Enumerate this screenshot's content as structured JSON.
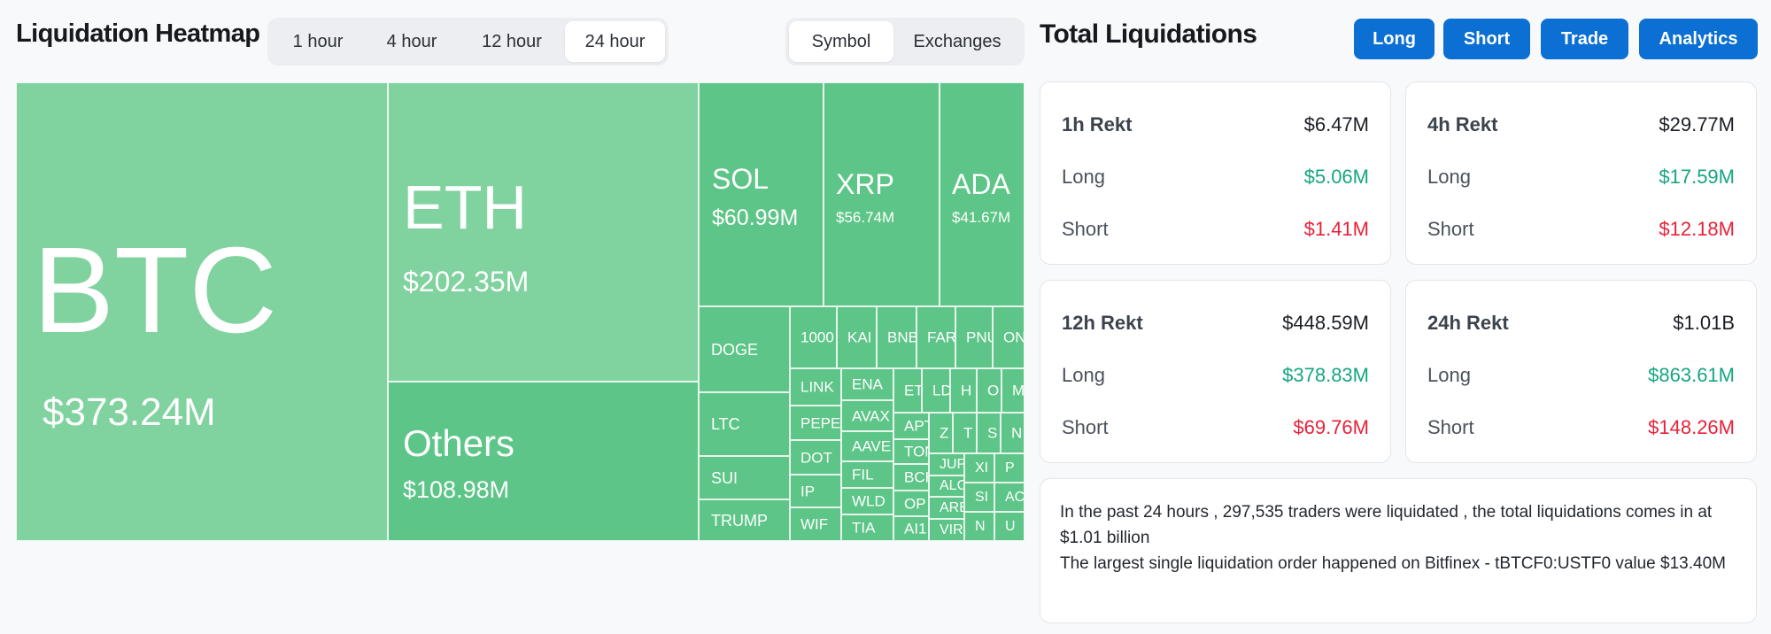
{
  "heatmap": {
    "title": "Liquidation Heatmap",
    "time_tabs": [
      "1 hour",
      "4 hour",
      "12 hour",
      "24 hour"
    ],
    "active_time_tab": "24 hour",
    "view_tabs": [
      "Symbol",
      "Exchanges"
    ],
    "active_view_tab": "Symbol",
    "tiles": {
      "btc": {
        "symbol": "BTC",
        "value": "$373.24M"
      },
      "eth": {
        "symbol": "ETH",
        "value": "$202.35M"
      },
      "others": {
        "symbol": "Others",
        "value": "$108.98M"
      },
      "sol": {
        "symbol": "SOL",
        "value": "$60.99M"
      },
      "xrp": {
        "symbol": "XRP",
        "value": "$56.74M"
      },
      "ada": {
        "symbol": "ADA",
        "value": "$41.67M"
      },
      "doge": {
        "symbol": "DOGE"
      },
      "ltc": {
        "symbol": "LTC"
      },
      "sui": {
        "symbol": "SUI"
      },
      "trump": {
        "symbol": "TRUMP"
      },
      "t1000": {
        "symbol": "1000"
      },
      "kai": {
        "symbol": "KAI"
      },
      "bnb": {
        "symbol": "BNB"
      },
      "far": {
        "symbol": "FAR"
      },
      "pnu": {
        "symbol": "PNU"
      },
      "on": {
        "symbol": "ON"
      },
      "link": {
        "symbol": "LINK"
      },
      "pepe": {
        "symbol": "PEPE"
      },
      "dot": {
        "symbol": "DOT"
      },
      "ip": {
        "symbol": "IP"
      },
      "wif": {
        "symbol": "WIF"
      },
      "ena": {
        "symbol": "ENA"
      },
      "avax": {
        "symbol": "AVAX"
      },
      "aave": {
        "symbol": "AAVE"
      },
      "fil": {
        "symbol": "FIL"
      },
      "wld": {
        "symbol": "WLD"
      },
      "tia": {
        "symbol": "TIA"
      },
      "et": {
        "symbol": "ET"
      },
      "ld": {
        "symbol": "LD"
      },
      "h": {
        "symbol": "H"
      },
      "o": {
        "symbol": "O"
      },
      "m": {
        "symbol": "M"
      },
      "apt": {
        "symbol": "APT"
      },
      "ton": {
        "symbol": "TON"
      },
      "bch": {
        "symbol": "BCH"
      },
      "op": {
        "symbol": "OP"
      },
      "ai1": {
        "symbol": "AI1"
      },
      "z": {
        "symbol": "Z"
      },
      "t": {
        "symbol": "T"
      },
      "s": {
        "symbol": "S"
      },
      "n1": {
        "symbol": "N"
      },
      "jup": {
        "symbol": "JUP"
      },
      "xi": {
        "symbol": "XI"
      },
      "p": {
        "symbol": "P"
      },
      "alc": {
        "symbol": "ALC"
      },
      "si": {
        "symbol": "SI"
      },
      "ac": {
        "symbol": "AC"
      },
      "arb": {
        "symbol": "ARB"
      },
      "vir": {
        "symbol": "VIR"
      },
      "n2": {
        "symbol": "N"
      },
      "u": {
        "symbol": "U"
      }
    }
  },
  "total": {
    "title": "Total Liquidations",
    "buttons": [
      "Long",
      "Short",
      "Trade",
      "Analytics"
    ],
    "cards": [
      {
        "label": "1h Rekt",
        "total": "$6.47M",
        "long_label": "Long",
        "long": "$5.06M",
        "short_label": "Short",
        "short": "$1.41M"
      },
      {
        "label": "4h Rekt",
        "total": "$29.77M",
        "long_label": "Long",
        "long": "$17.59M",
        "short_label": "Short",
        "short": "$12.18M"
      },
      {
        "label": "12h Rekt",
        "total": "$448.59M",
        "long_label": "Long",
        "long": "$378.83M",
        "short_label": "Short",
        "short": "$69.76M"
      },
      {
        "label": "24h Rekt",
        "total": "$1.01B",
        "long_label": "Long",
        "long": "$863.61M",
        "short_label": "Short",
        "short": "$148.26M"
      }
    ],
    "summary_line1": "In the past 24 hours , 297,535 traders were liquidated , the total liquidations comes in at $1.01 billion",
    "summary_line2": "The largest single liquidation order happened on Bitfinex - tBTCF0:USTF0 value $13.40M"
  },
  "colors": {
    "tile_dark": "#5dc587",
    "tile_light": "#80d29f",
    "accent_blue": "#0b6fd4",
    "long_green": "#16a583",
    "short_red": "#e8213a"
  }
}
